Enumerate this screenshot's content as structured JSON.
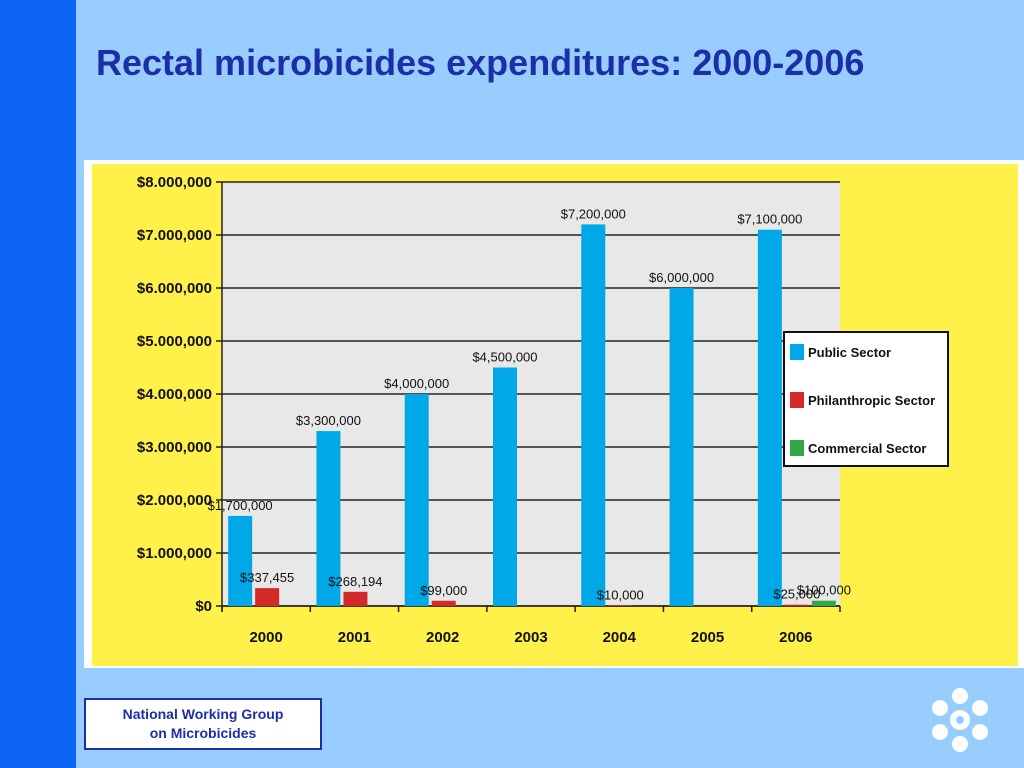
{
  "slide": {
    "title": "Rectal microbicides expenditures: 2000-2006",
    "footer_line1": "National Working Group",
    "footer_line2": "on Microbicides"
  },
  "colors": {
    "background": "#99ccff",
    "left_bar": "#0a63f2",
    "title": "#1a2fa8",
    "chart_background": "#fff04a",
    "plot_background": "#e8e8e8",
    "public": "#00a8e8",
    "philanthropic": "#d42a2a",
    "commercial": "#33a845"
  },
  "chart_data": {
    "type": "bar",
    "categories": [
      "2000",
      "2001",
      "2002",
      "2003",
      "2004",
      "2005",
      "2006"
    ],
    "ylim": [
      0,
      8000000
    ],
    "y_ticks": [
      0,
      1000000,
      2000000,
      3000000,
      4000000,
      5000000,
      6000000,
      7000000,
      8000000
    ],
    "y_tick_labels": [
      "$0",
      "$1.000,000",
      "$2.000,000",
      "$3.000,000",
      "$4.000,000",
      "$5.000,000",
      "$6.000,000",
      "$7.000,000",
      "$8.000,000"
    ],
    "grid": true,
    "legend_position": "right",
    "series": [
      {
        "name": "Public Sector",
        "color": "#00a8e8",
        "values": [
          1700000,
          3300000,
          4000000,
          4500000,
          7200000,
          6000000,
          7100000
        ],
        "labels": [
          "$1,700,000",
          "$3,300,000",
          "$4,000,000",
          "$4,500,000",
          "$7,200,000",
          "$6,000,000",
          "$7,100,000"
        ]
      },
      {
        "name": "Philanthropic Sector",
        "color": "#d42a2a",
        "values": [
          337455,
          268194,
          99000,
          0,
          10000,
          0,
          25000
        ],
        "labels": [
          "$337,455",
          "$268,194",
          "$99,000",
          "",
          "$10,000",
          "",
          "$25,000"
        ]
      },
      {
        "name": "Commercial Sector",
        "color": "#33a845",
        "values": [
          0,
          0,
          0,
          0,
          0,
          0,
          100000
        ],
        "labels": [
          "",
          "",
          "",
          "",
          "",
          "",
          "$100,000"
        ]
      }
    ]
  }
}
